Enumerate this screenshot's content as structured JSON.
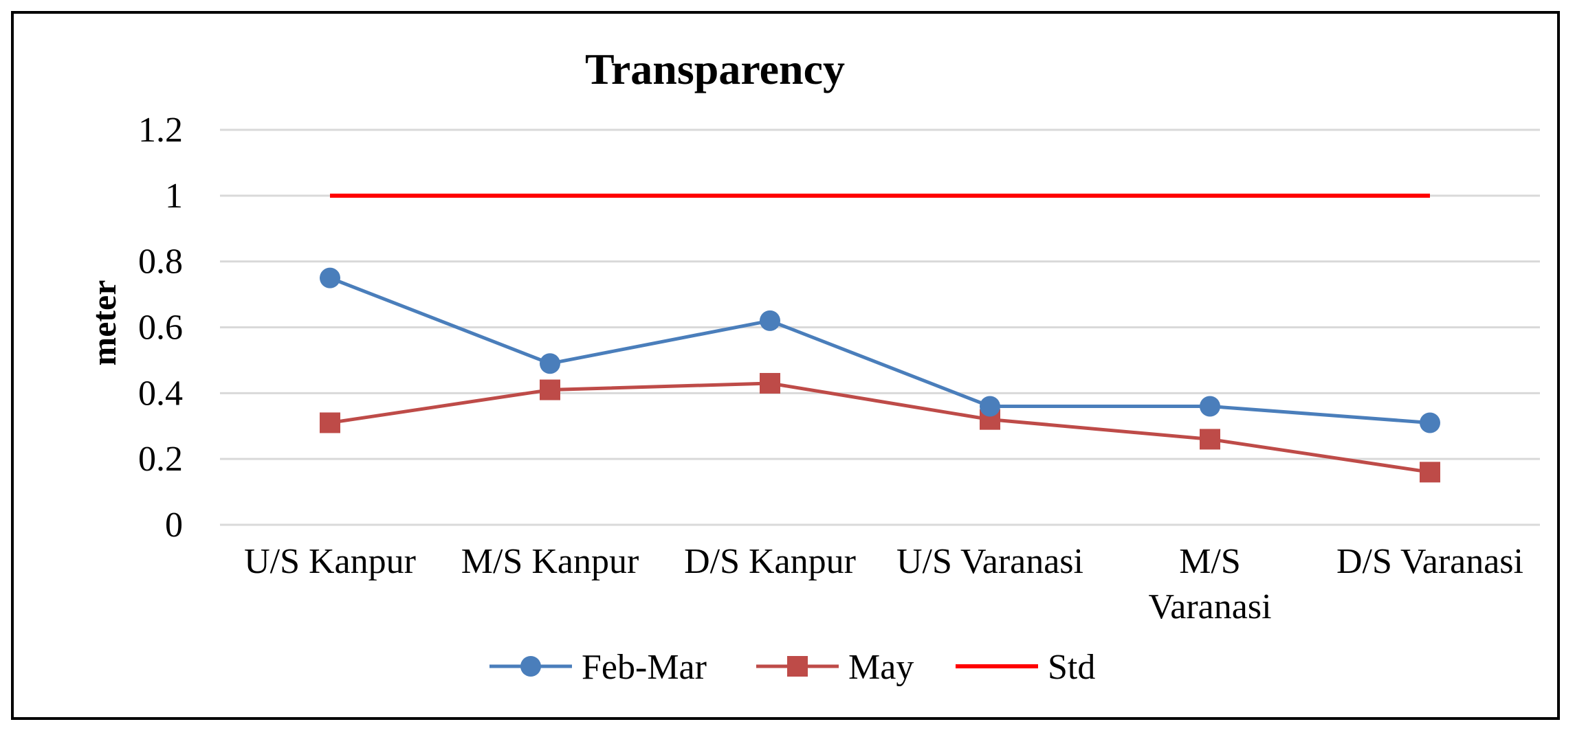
{
  "chart_data": {
    "type": "line",
    "title": "Transparency",
    "xlabel": "",
    "ylabel": "meter",
    "ylim": [
      0,
      1.2
    ],
    "yticks": [
      "0",
      "0.2",
      "0.4",
      "0.6",
      "0.8",
      "1",
      "1.2"
    ],
    "categories": [
      "U/S Kanpur",
      "M/S Kanpur",
      "D/S Kanpur",
      "U/S Varanasi",
      "M/S Varanasi",
      "D/S Varanasi"
    ],
    "category_label_lines": [
      [
        "U/S Kanpur"
      ],
      [
        "M/S Kanpur"
      ],
      [
        "D/S Kanpur"
      ],
      [
        "U/S Varanasi"
      ],
      [
        "M/S",
        "Varanasi"
      ],
      [
        "D/S Varanasi"
      ]
    ],
    "grid": true,
    "legend_position": "bottom",
    "series": [
      {
        "name": "Feb-Mar",
        "values": [
          0.75,
          0.49,
          0.62,
          0.36,
          0.36,
          0.31
        ],
        "color": "#4a7ebb",
        "marker": "circle"
      },
      {
        "name": "May",
        "values": [
          0.31,
          0.41,
          0.43,
          0.32,
          0.26,
          0.16
        ],
        "color": "#be4b48",
        "marker": "square"
      },
      {
        "name": "Std",
        "values": [
          1,
          1,
          1,
          1,
          1,
          1
        ],
        "color": "#ff0000",
        "marker": "none"
      }
    ]
  }
}
